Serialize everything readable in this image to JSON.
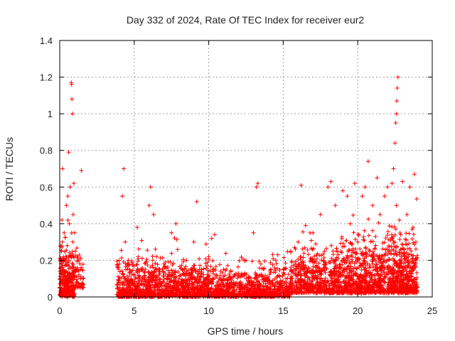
{
  "chart_data": {
    "type": "scatter",
    "title": "Day 332 of 2024, Rate Of TEC Index for receiver eur2",
    "xlabel": "GPS time / hours",
    "ylabel": "ROTI / TECUs",
    "xlim": [
      0,
      25
    ],
    "ylim": [
      0,
      1.4
    ],
    "x_ticks": [
      "0",
      "5",
      "10",
      "15",
      "20",
      "25"
    ],
    "y_ticks": [
      "0",
      "0.2",
      "0.4",
      "0.6",
      "0.8",
      "1",
      "1.2",
      "1.4"
    ],
    "grid": true,
    "legend": "none",
    "marker": "plus",
    "marker_color": "#ff0000",
    "series": [
      {
        "values": [
          [
            0.05,
            0.1
          ],
          [
            0.1,
            0.18
          ],
          [
            0.12,
            0.25
          ],
          [
            0.15,
            0.42
          ],
          [
            0.18,
            0.3
          ],
          [
            0.2,
            0.7
          ],
          [
            0.25,
            0.15
          ],
          [
            0.3,
            0.35
          ],
          [
            0.35,
            0.08
          ],
          [
            0.4,
            0.22
          ],
          [
            0.45,
            0.5
          ],
          [
            0.5,
            0.28
          ],
          [
            0.55,
            0.55
          ],
          [
            0.6,
            0.79
          ],
          [
            0.62,
            0.2
          ],
          [
            0.65,
            0.4
          ],
          [
            0.7,
            0.6
          ],
          [
            0.72,
            0.12
          ],
          [
            0.78,
            1.17
          ],
          [
            0.8,
            1.16
          ],
          [
            0.82,
            1.08
          ],
          [
            0.85,
            1.0
          ],
          [
            0.88,
            0.3
          ],
          [
            0.9,
            0.45
          ],
          [
            0.95,
            0.62
          ],
          [
            1.0,
            0.35
          ],
          [
            1.05,
            0.25
          ],
          [
            1.1,
            0.15
          ],
          [
            1.3,
            0.2
          ],
          [
            1.4,
            0.1
          ],
          [
            1.45,
            0.69
          ],
          [
            1.5,
            0.05
          ],
          [
            4.0,
            0.18
          ],
          [
            4.2,
            0.55
          ],
          [
            4.3,
            0.7
          ],
          [
            4.4,
            0.3
          ],
          [
            4.6,
            0.2
          ],
          [
            5.0,
            0.12
          ],
          [
            5.2,
            0.38
          ],
          [
            5.5,
            0.15
          ],
          [
            6.0,
            0.5
          ],
          [
            6.1,
            0.6
          ],
          [
            6.3,
            0.45
          ],
          [
            6.5,
            0.22
          ],
          [
            7.0,
            0.18
          ],
          [
            7.5,
            0.35
          ],
          [
            7.8,
            0.4
          ],
          [
            8.0,
            0.1
          ],
          [
            8.5,
            0.2
          ],
          [
            9.0,
            0.3
          ],
          [
            9.2,
            0.52
          ],
          [
            9.5,
            0.15
          ],
          [
            10.0,
            0.22
          ],
          [
            10.2,
            0.32
          ],
          [
            10.5,
            0.12
          ],
          [
            11.0,
            0.15
          ],
          [
            11.5,
            0.08
          ],
          [
            12.0,
            0.12
          ],
          [
            12.5,
            0.2
          ],
          [
            13.0,
            0.35
          ],
          [
            13.2,
            0.6
          ],
          [
            13.3,
            0.62
          ],
          [
            13.5,
            0.18
          ],
          [
            14.0,
            0.1
          ],
          [
            14.5,
            0.2
          ],
          [
            15.0,
            0.15
          ],
          [
            15.5,
            0.25
          ],
          [
            16.0,
            0.3
          ],
          [
            16.2,
            0.61
          ],
          [
            16.5,
            0.39
          ],
          [
            17.0,
            0.35
          ],
          [
            17.5,
            0.45
          ],
          [
            18.0,
            0.6
          ],
          [
            18.2,
            0.63
          ],
          [
            18.5,
            0.5
          ],
          [
            19.0,
            0.58
          ],
          [
            19.3,
            0.55
          ],
          [
            19.5,
            0.4
          ],
          [
            19.8,
            0.62
          ],
          [
            20.0,
            0.3
          ],
          [
            20.3,
            0.55
          ],
          [
            20.5,
            0.6
          ],
          [
            20.7,
            0.74
          ],
          [
            21.0,
            0.5
          ],
          [
            21.3,
            0.65
          ],
          [
            21.5,
            0.45
          ],
          [
            21.8,
            0.55
          ],
          [
            22.0,
            0.6
          ],
          [
            22.3,
            0.62
          ],
          [
            22.4,
            0.7
          ],
          [
            22.5,
            0.84
          ],
          [
            22.55,
            0.95
          ],
          [
            22.6,
            1.0
          ],
          [
            22.62,
            1.07
          ],
          [
            22.65,
            1.14
          ],
          [
            22.7,
            1.2
          ],
          [
            22.8,
            0.42
          ],
          [
            23.0,
            0.63
          ],
          [
            23.3,
            0.45
          ],
          [
            23.5,
            0.6
          ],
          [
            23.8,
            0.67
          ],
          [
            23.9,
            0.3
          ]
        ]
      }
    ],
    "dense_bands": [
      {
        "x": [
          0.0,
          1.0
        ],
        "y": [
          0.0,
          0.3
        ],
        "count": 300
      },
      {
        "x": [
          1.0,
          1.6
        ],
        "y": [
          0.05,
          0.25
        ],
        "count": 60
      },
      {
        "x": [
          3.8,
          6.5
        ],
        "y": [
          0.0,
          0.22
        ],
        "count": 500
      },
      {
        "x": [
          6.5,
          10.5
        ],
        "y": [
          0.0,
          0.2
        ],
        "count": 700
      },
      {
        "x": [
          10.5,
          15.5
        ],
        "y": [
          0.0,
          0.15
        ],
        "count": 800
      },
      {
        "x": [
          15.5,
          18.5
        ],
        "y": [
          0.02,
          0.3
        ],
        "count": 500
      },
      {
        "x": [
          18.5,
          22.0
        ],
        "y": [
          0.02,
          0.35
        ],
        "count": 700
      },
      {
        "x": [
          22.0,
          24.0
        ],
        "y": [
          0.02,
          0.4
        ],
        "count": 500
      }
    ]
  }
}
